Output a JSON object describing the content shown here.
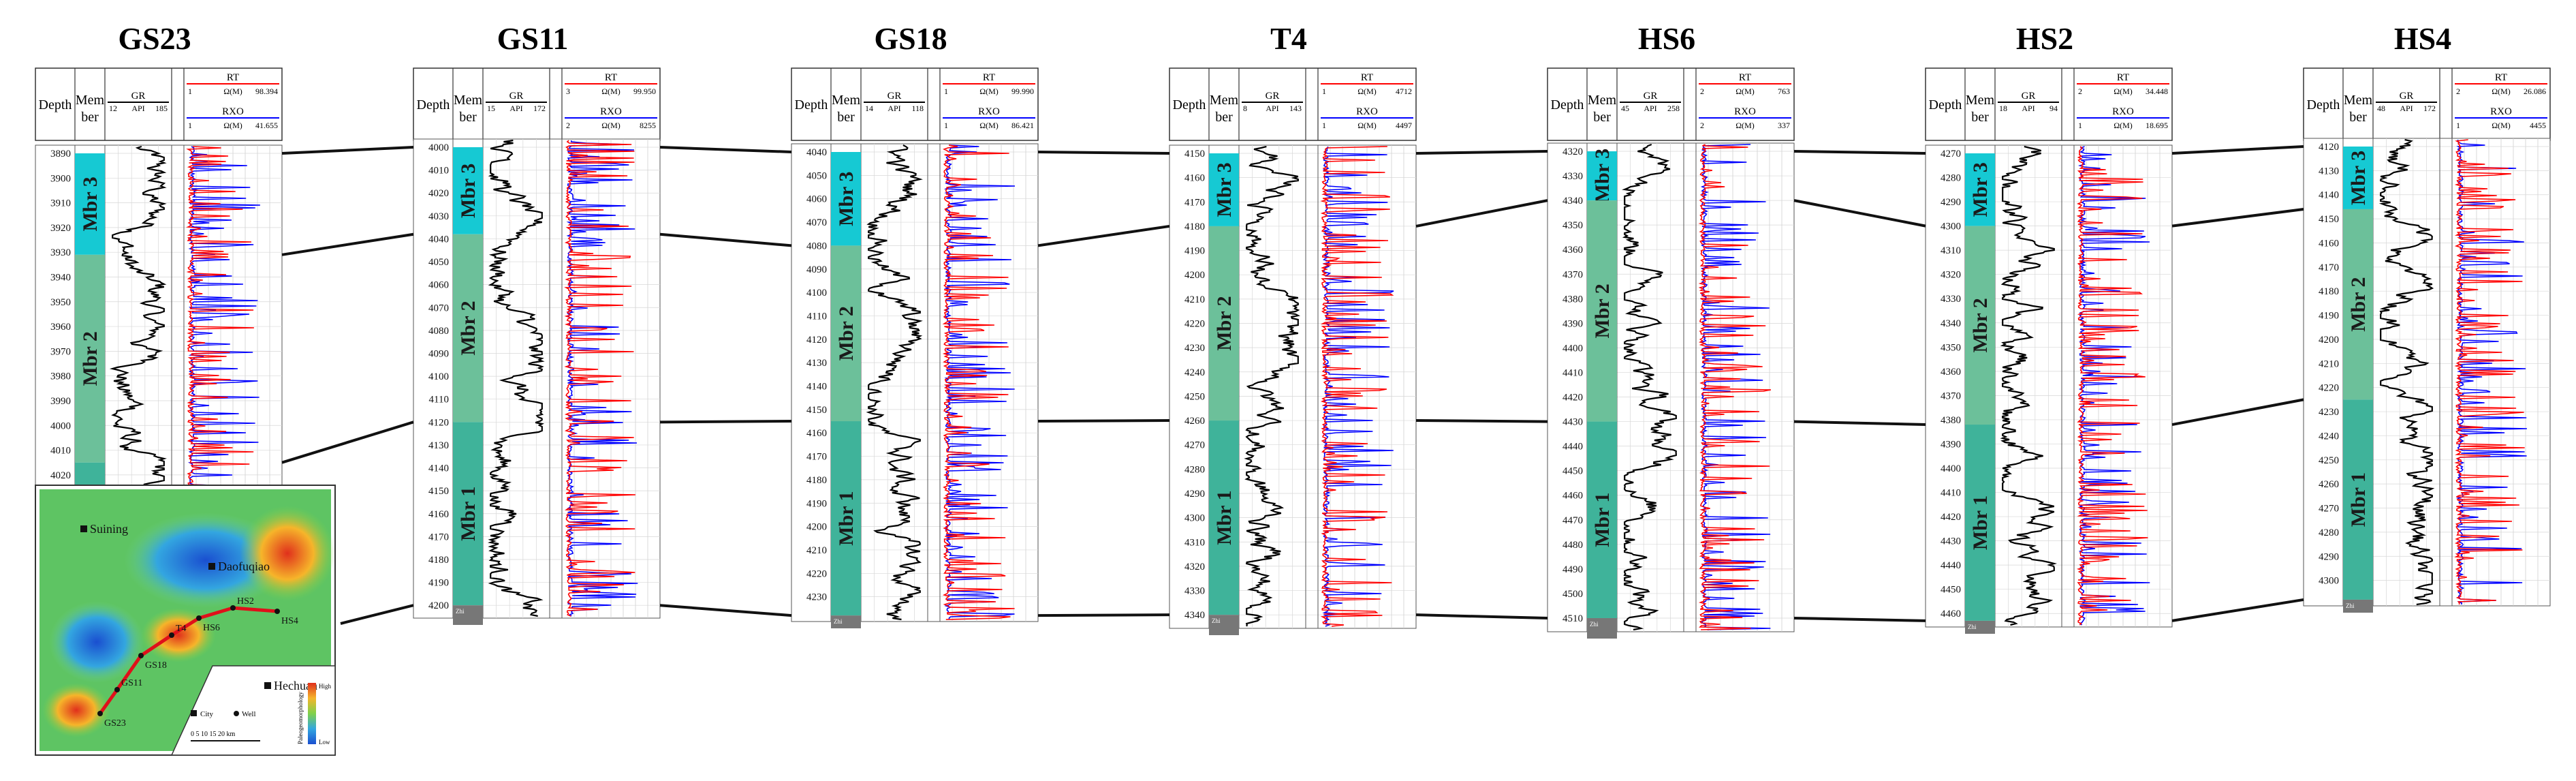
{
  "figure": {
    "header_labels": {
      "depth": "Depth",
      "mem": "Mem",
      "ber": "ber",
      "gr": "GR",
      "gr_unit": "API",
      "rt": "RT",
      "rxo": "RXO",
      "res_unit": "Ω(M)"
    },
    "members": [
      "Mbr 3",
      "Mbr 2",
      "Mbr 1"
    ],
    "base_label": "Zhi"
  },
  "wells": [
    {
      "name": "GS23",
      "gr_min": "12",
      "gr_max": "185",
      "rt_min": "1",
      "rt_max": "98.394",
      "rxo_min": "1",
      "rxo_max": "41.655",
      "depth_start": 3890,
      "depth_end": 4025,
      "tops": [
        3890,
        3931,
        4015,
        null
      ],
      "ticks": [
        "3890",
        "3900",
        "3910",
        "3920",
        "3930",
        "3940",
        "3950",
        "3960",
        "3970",
        "3980",
        "3990",
        "4000",
        "4010",
        "4020"
      ]
    },
    {
      "name": "GS11",
      "gr_min": "15",
      "gr_max": "172",
      "rt_min": "3",
      "rt_max": "99.950",
      "rxo_min": "2",
      "rxo_max": "8255",
      "depth_start": 4000,
      "depth_end": 4205,
      "tops": [
        4000,
        4038,
        4120,
        4200
      ],
      "ticks": [
        "4000",
        "4010",
        "4020",
        "4030",
        "4040",
        "4050",
        "4060",
        "4070",
        "4080",
        "4090",
        "4100",
        "4110",
        "4120",
        "4130",
        "4140",
        "4150",
        "4160",
        "4170",
        "4180",
        "4190",
        "4200"
      ]
    },
    {
      "name": "GS18",
      "gr_min": "14",
      "gr_max": "118",
      "rt_min": "1",
      "rt_max": "99.990",
      "rxo_min": "1",
      "rxo_max": "86.421",
      "depth_start": 4040,
      "depth_end": 4240,
      "tops": [
        4040,
        4080,
        4155,
        4238
      ],
      "ticks": [
        "4040",
        "4050",
        "4060",
        "4070",
        "4080",
        "4090",
        "4100",
        "4110",
        "4120",
        "4130",
        "4140",
        "4150",
        "4160",
        "4170",
        "4180",
        "4190",
        "4200",
        "4210",
        "4220",
        "4230"
      ]
    },
    {
      "name": "T4",
      "gr_min": "8",
      "gr_max": "143",
      "rt_min": "1",
      "rt_max": "4712",
      "rxo_min": "1",
      "rxo_max": "4497",
      "depth_start": 4150,
      "depth_end": 4345,
      "tops": [
        4150,
        4180,
        4260,
        4340
      ],
      "ticks": [
        "4150",
        "4160",
        "4170",
        "4180",
        "4190",
        "4200",
        "4210",
        "4220",
        "4230",
        "4240",
        "4250",
        "4260",
        "4270",
        "4280",
        "4290",
        "4300",
        "4310",
        "4320",
        "4330",
        "4340"
      ]
    },
    {
      "name": "HS6",
      "gr_min": "45",
      "gr_max": "258",
      "rt_min": "2",
      "rt_max": "763",
      "rxo_min": "2",
      "rxo_max": "337",
      "depth_start": 4320,
      "depth_end": 4515,
      "tops": [
        4320,
        4340,
        4430,
        4510
      ],
      "ticks": [
        "4320",
        "4330",
        "4340",
        "4350",
        "4360",
        "4370",
        "4380",
        "4390",
        "4400",
        "4410",
        "4420",
        "4430",
        "4440",
        "4450",
        "4460",
        "4470",
        "4480",
        "4490",
        "4500",
        "4510"
      ]
    },
    {
      "name": "HS2",
      "gr_min": "18",
      "gr_max": "94",
      "rt_min": "2",
      "rt_max": "34.448",
      "rxo_min": "1",
      "rxo_max": "18.695",
      "depth_start": 4270,
      "depth_end": 4465,
      "tops": [
        4270,
        4300,
        4382,
        4463
      ],
      "ticks": [
        "4270",
        "4280",
        "4290",
        "4300",
        "4310",
        "4320",
        "4330",
        "4340",
        "4350",
        "4360",
        "4370",
        "4380",
        "4390",
        "4400",
        "4410",
        "4420",
        "4430",
        "4440",
        "4450",
        "4460"
      ]
    },
    {
      "name": "HS4",
      "gr_min": "48",
      "gr_max": "172",
      "rt_min": "2",
      "rt_max": "26.086",
      "rxo_min": "1",
      "rxo_max": "4455",
      "depth_start": 4120,
      "depth_end": 4310,
      "tops": [
        4120,
        4146,
        4225,
        4308
      ],
      "ticks": [
        "4120",
        "4130",
        "4140",
        "4150",
        "4160",
        "4170",
        "4180",
        "4190",
        "4200",
        "4210",
        "4220",
        "4230",
        "4240",
        "4250",
        "4260",
        "4270",
        "4280",
        "4290",
        "4300"
      ]
    }
  ],
  "map": {
    "cities": [
      "Suining",
      "Daofuqiao",
      "Hechuan"
    ],
    "well_labels": [
      "GS23",
      "GS11",
      "GS18",
      "T4",
      "HS6",
      "HS2",
      "HS4"
    ],
    "legend_city": "City",
    "legend_well": "Well",
    "scale": "0  5  10  15  20 km",
    "scale_unit": "",
    "color_bar_high": "High",
    "color_bar_low": "Low",
    "color_bar_title": "Paleogeomorphology"
  },
  "colors": {
    "mbr3": "#16c9d3",
    "mbr2": "#6cc09a",
    "mbr1": "#3fb39a",
    "gr": "#000000",
    "rt": "#ff0000",
    "rxo": "#0000ff",
    "correlation": "#111111"
  }
}
